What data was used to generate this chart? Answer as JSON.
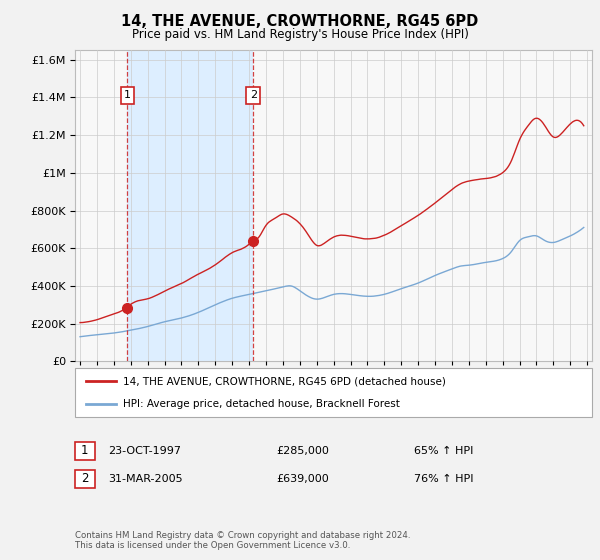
{
  "title": "14, THE AVENUE, CROWTHORNE, RG45 6PD",
  "subtitle": "Price paid vs. HM Land Registry's House Price Index (HPI)",
  "legend_line1": "14, THE AVENUE, CROWTHORNE, RG45 6PD (detached house)",
  "legend_line2": "HPI: Average price, detached house, Bracknell Forest",
  "footer": "Contains HM Land Registry data © Crown copyright and database right 2024.\nThis data is licensed under the Open Government Licence v3.0.",
  "transaction1_date": "23-OCT-1997",
  "transaction1_price": "£285,000",
  "transaction1_hpi": "65% ↑ HPI",
  "transaction2_date": "31-MAR-2005",
  "transaction2_price": "£639,000",
  "transaction2_hpi": "76% ↑ HPI",
  "vline1_x": 1997.8,
  "vline2_x": 2005.25,
  "red_color": "#cc2222",
  "blue_color": "#7aa8d4",
  "shade_color": "#ddeeff",
  "background_color": "#f2f2f2",
  "plot_background": "#f8f8f8",
  "grid_color": "#cccccc",
  "ylim": [
    0,
    1650000
  ],
  "xlim": [
    1994.7,
    2025.3
  ]
}
